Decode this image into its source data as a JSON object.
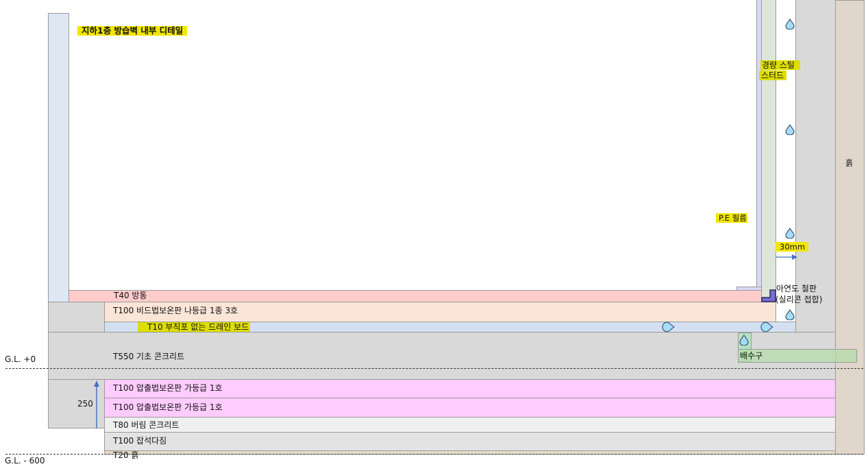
{
  "title": "지하1층 방습벽 내부 디테일",
  "labels": {
    "steel_stud_1": "경량 스틸",
    "steel_stud_2": "스터드",
    "pe_film": "P.E 필름",
    "gap": "30mm",
    "zinc_1": "아연도 철판",
    "zinc_2": "(실리콘 접합)",
    "soil_right": "흙",
    "drain": "배수구",
    "gl_0": "G.L. +0",
    "gl_600": "G.L. - 600",
    "dim_250": "250"
  },
  "layers": [
    {
      "label": "T40 방통",
      "color": "#ffcccc"
    },
    {
      "label": "T100 비드법보온판 나등급 1종 3호",
      "color": "#fbe5d6"
    },
    {
      "label": "T10 부직포 없는 드레인 보드",
      "color": "#d4e0f2"
    },
    {
      "label": "T550 기초 콘크리트",
      "color": "#d9d9d9"
    },
    {
      "label": "T100 압출법보온판 가등급 1호",
      "color": "#ffccff"
    },
    {
      "label": "T100 압출법보온판 가등급 1호",
      "color": "#ffccff"
    },
    {
      "label": "T80 버림 콘크리트",
      "color": "#f0f0f0"
    },
    {
      "label": "T100 잡석다짐",
      "color": "#e3e3e3"
    },
    {
      "label": "T20 흙",
      "color": "#e8dcc8"
    }
  ],
  "colors": {
    "highlight": "#f2e600",
    "arrow": "#4472c4",
    "water": "#a6dcf5",
    "zinc": "#7b6bcc"
  }
}
